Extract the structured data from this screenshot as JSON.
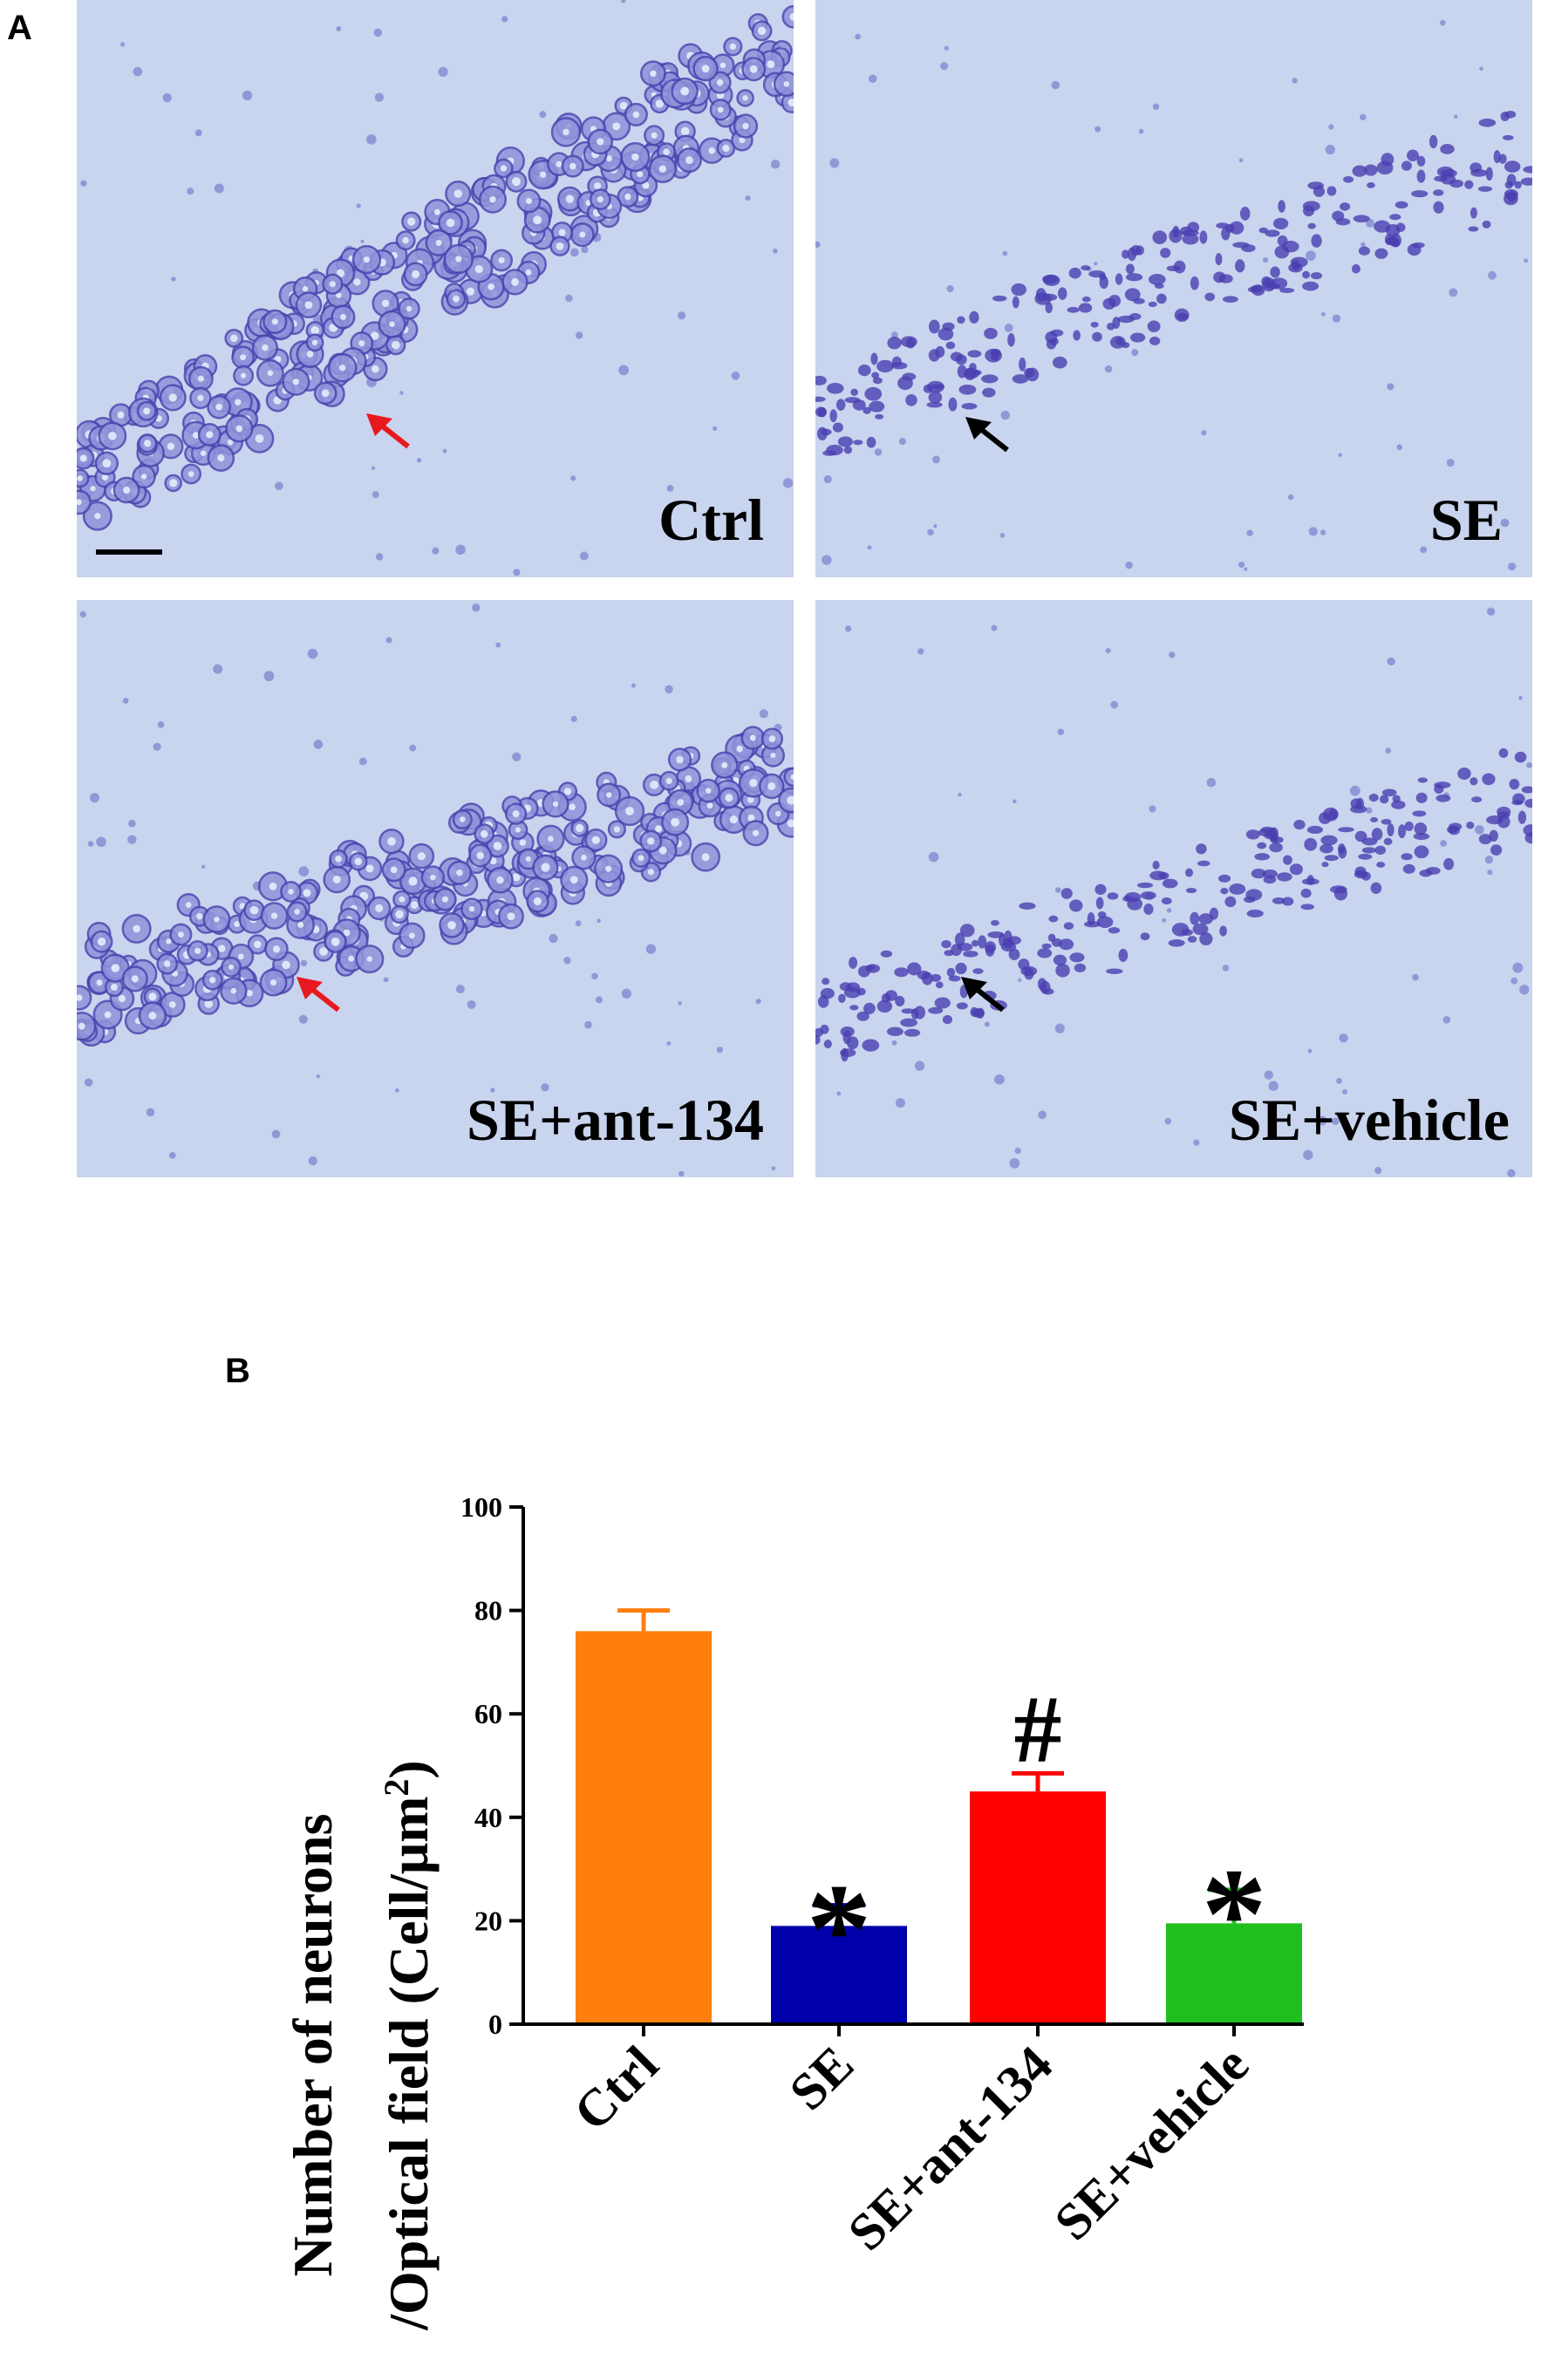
{
  "panel_a": {
    "letter": "A",
    "images": [
      {
        "label": "Ctrl",
        "arrow_color": "#e8191e"
      },
      {
        "label": "SE",
        "arrow_color": "#000000"
      },
      {
        "label": "SE+ant-134",
        "arrow_color": "#e8191e"
      },
      {
        "label": "SE+vehicle",
        "arrow_color": "#000000"
      }
    ]
  },
  "panel_b": {
    "letter": "B",
    "ylabel_line1": "Number of neurons",
    "ylabel_line2_main": "/Optical field (Cell/μm",
    "ylabel_line2_sup": "2",
    "ylabel_line2_end": ")"
  },
  "chart_data": {
    "type": "bar",
    "categories": [
      "Ctrl",
      "SE",
      "SE+ant-134",
      "SE+vehicle"
    ],
    "values": [
      76,
      19,
      45,
      19.5
    ],
    "errors": [
      4,
      4,
      3.5,
      6.5
    ],
    "colors": [
      "#ff7f0e",
      "#0000aa",
      "#ff0000",
      "#1fbf1f"
    ],
    "annotations": [
      "",
      "*",
      "#",
      "*"
    ],
    "ylim": [
      0,
      100
    ],
    "yticks": [
      "0",
      "20",
      "40",
      "60",
      "80",
      "100"
    ]
  }
}
